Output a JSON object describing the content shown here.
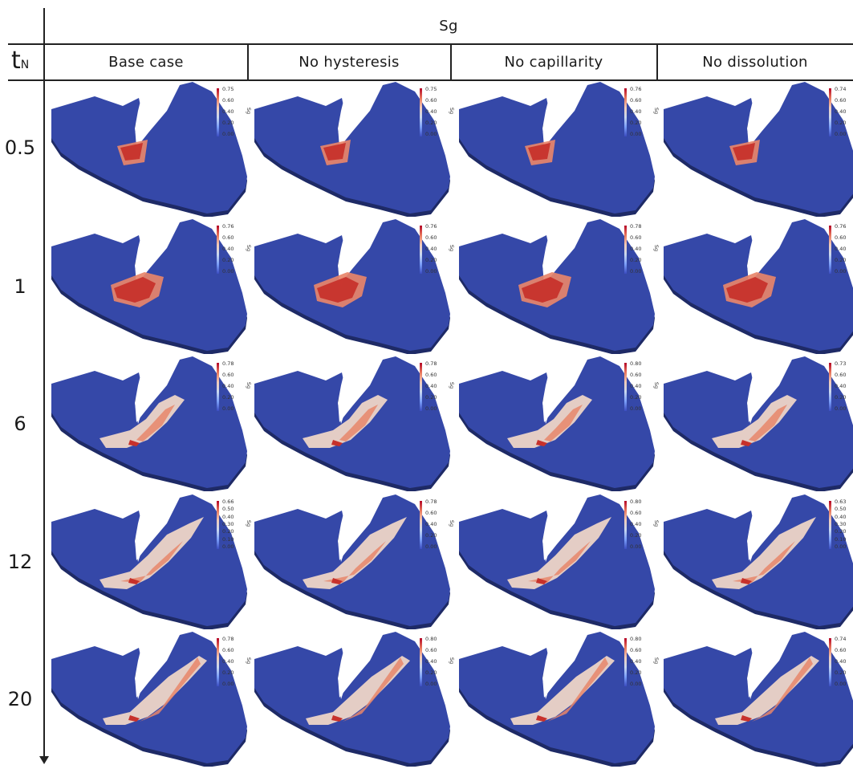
{
  "header": {
    "variable": "Sg",
    "time_label": "t",
    "time_sub": "N"
  },
  "columns": [
    "Base case",
    "No hysteresis",
    "No capillarity",
    "No dissolution"
  ],
  "rows": [
    "0.5",
    "1",
    "6",
    "12",
    "20"
  ],
  "colorbar_name": "Sg",
  "colorbars": [
    [
      [
        "0.75",
        "0.60",
        "0.40",
        "0.20",
        "0.00"
      ],
      [
        "0.75",
        "0.60",
        "0.40",
        "0.20",
        "0.00"
      ],
      [
        "0.76",
        "0.60",
        "0.40",
        "0.20",
        "0.00"
      ],
      [
        "0.74",
        "0.60",
        "0.40",
        "0.20",
        "0.00"
      ]
    ],
    [
      [
        "0.76",
        "0.60",
        "0.40",
        "0.20",
        "0.00"
      ],
      [
        "0.76",
        "0.60",
        "0.40",
        "0.20",
        "0.00"
      ],
      [
        "0.78",
        "0.60",
        "0.40",
        "0.20",
        "0.00"
      ],
      [
        "0.76",
        "0.60",
        "0.40",
        "0.20",
        "0.00"
      ]
    ],
    [
      [
        "0.78",
        "0.60",
        "0.40",
        "0.20",
        "0.00"
      ],
      [
        "0.78",
        "0.60",
        "0.40",
        "0.20",
        "0.00"
      ],
      [
        "0.80",
        "0.60",
        "0.40",
        "0.20",
        "0.00"
      ],
      [
        "0.73",
        "0.60",
        "0.40",
        "0.20",
        "0.00"
      ]
    ],
    [
      [
        "0.66",
        "0.50",
        "0.40",
        "0.30",
        "0.20",
        "0.10",
        "0.00"
      ],
      [
        "0.78",
        "0.60",
        "0.40",
        "0.20",
        "0.00"
      ],
      [
        "0.80",
        "0.60",
        "0.40",
        "0.20",
        "0.00"
      ],
      [
        "0.63",
        "0.50",
        "0.40",
        "0.30",
        "0.20",
        "0.10",
        "0.00"
      ]
    ],
    [
      [
        "0.78",
        "0.60",
        "0.40",
        "0.20",
        "0.00"
      ],
      [
        "0.80",
        "0.60",
        "0.40",
        "0.20",
        "0.00"
      ],
      [
        "0.80",
        "0.60",
        "0.40",
        "0.20",
        "0.00"
      ],
      [
        "0.74",
        "0.60",
        "0.40",
        "0.20",
        "0.00"
      ]
    ]
  ],
  "colors": {
    "domain": "#3548a8",
    "domain_edge": "#1e2a66",
    "plume_hot": "#c7312b",
    "plume_mid": "#e8866a",
    "plume_low": "#f3d9c8"
  }
}
